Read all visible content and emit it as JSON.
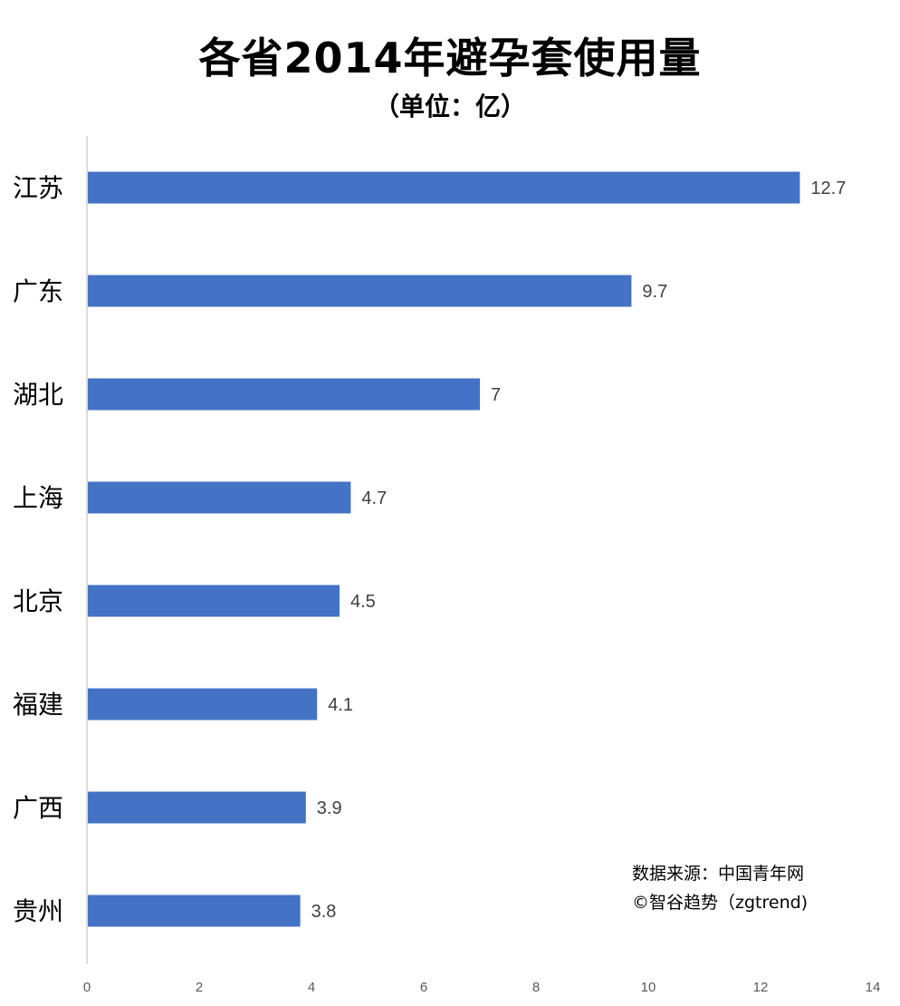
{
  "chart_data": {
    "type": "bar",
    "orientation": "horizontal",
    "title": "各省2014年避孕套使用量",
    "subtitle": "（单位：亿）",
    "categories": [
      "江苏",
      "广东",
      "湖北",
      "上海",
      "北京",
      "福建",
      "广西",
      "贵州"
    ],
    "values": [
      12.7,
      9.7,
      7,
      4.7,
      4.5,
      4.1,
      3.9,
      3.8
    ],
    "value_labels": [
      "12.7",
      "9.7",
      "7",
      "4.7",
      "4.5",
      "4.1",
      "3.9",
      "3.8"
    ],
    "xlim": [
      0,
      14
    ],
    "x_ticks": [
      0,
      2,
      4,
      6,
      8,
      10,
      12,
      14
    ],
    "grid": false,
    "legend": "none",
    "bar_color": "#4472C4",
    "annotations": [
      "数据来源：中国青年网",
      "©智谷趋势（zgtrend)"
    ]
  }
}
